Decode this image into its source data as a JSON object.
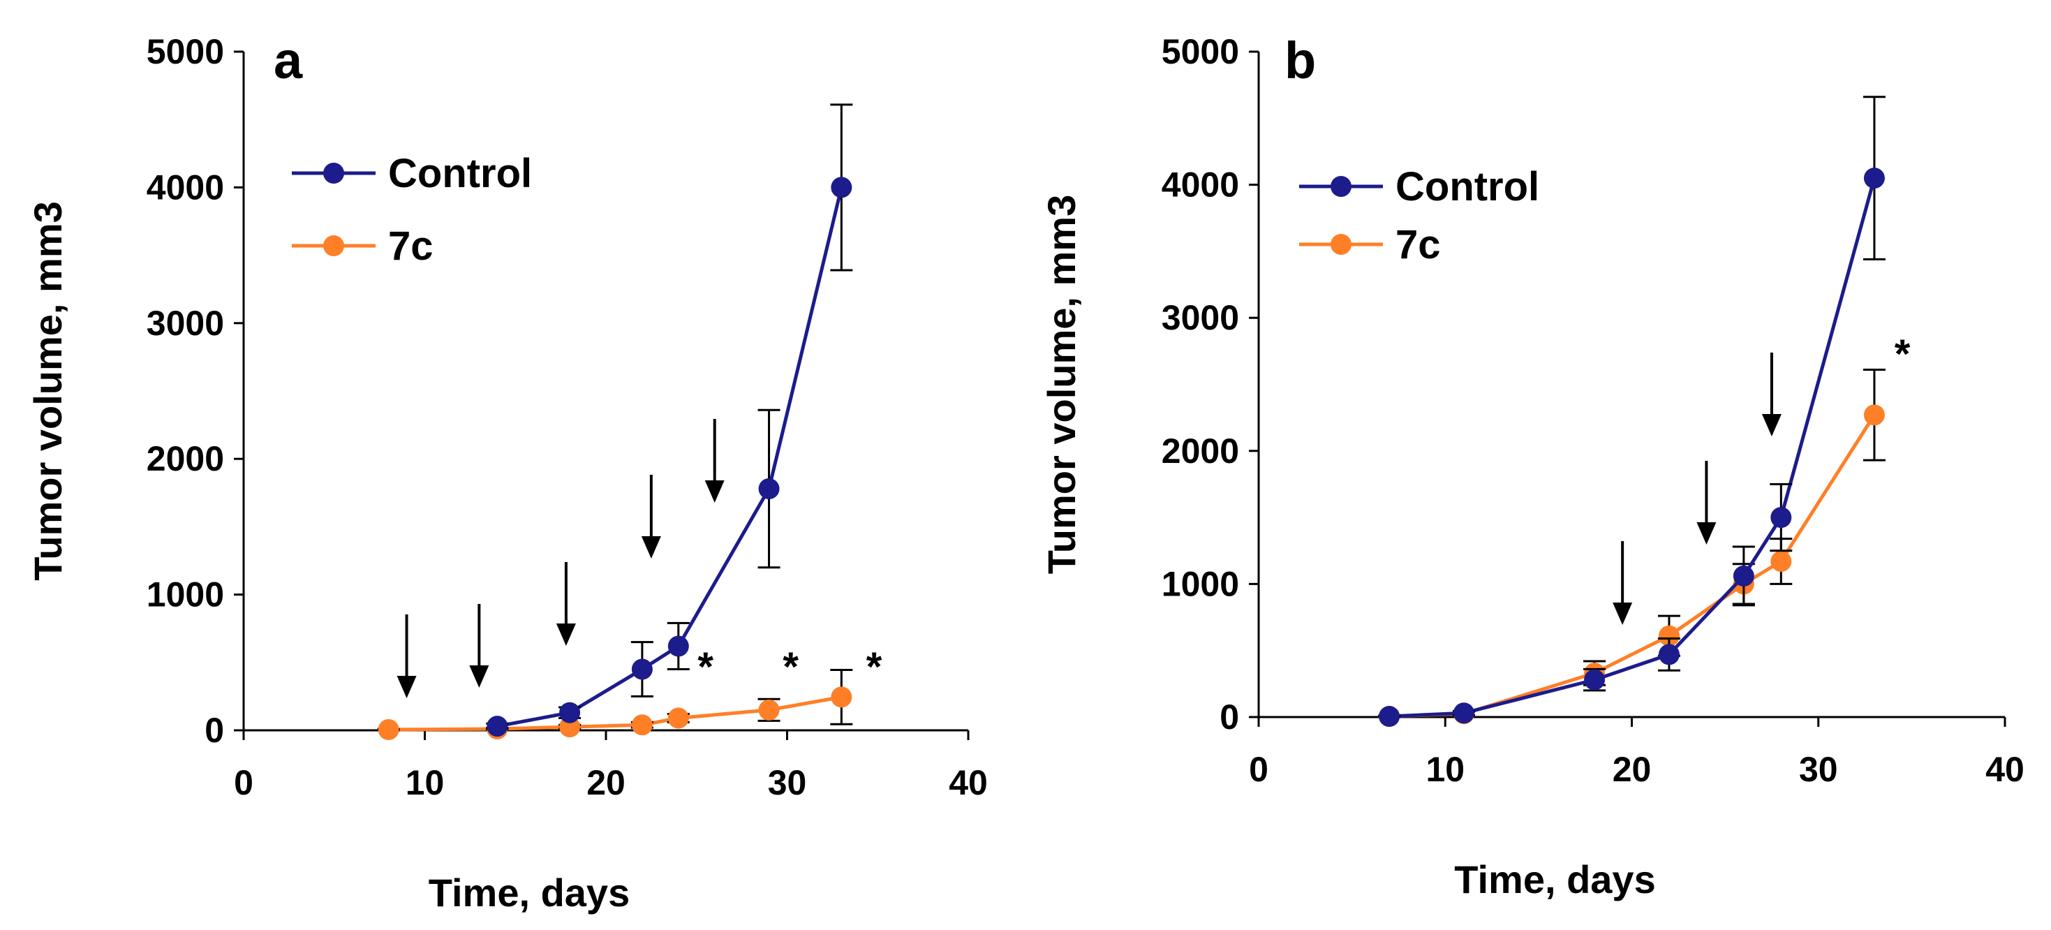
{
  "chart_data": [
    {
      "type": "line",
      "panel_label": "a",
      "xlabel": "Time, days",
      "ylabel": "Tumor volume, mm3",
      "xlim": [
        0,
        40
      ],
      "ylim": [
        0,
        5000
      ],
      "xticks": [
        "0",
        "10",
        "20",
        "30",
        "40"
      ],
      "yticks": [
        "0",
        "1000",
        "2000",
        "3000",
        "4000",
        "5000"
      ],
      "legend_position": "top-left",
      "series": [
        {
          "name": "Control",
          "color": "#1c1c8c",
          "x": [
            14,
            18,
            22,
            24,
            29,
            33
          ],
          "y": [
            30,
            130,
            450,
            620,
            1780,
            4000
          ],
          "err": [
            20,
            40,
            200,
            170,
            580,
            610
          ]
        },
        {
          "name": "7c",
          "color": "#ff7f27",
          "x": [
            8,
            14,
            18,
            22,
            24,
            29,
            33
          ],
          "y": [
            5,
            10,
            25,
            40,
            90,
            150,
            245
          ],
          "err": [
            5,
            8,
            15,
            20,
            30,
            80,
            200
          ]
        }
      ],
      "arrows_x": [
        9,
        13,
        17.8,
        22.5,
        26
      ],
      "significance": [
        {
          "label": "*",
          "x": 25.5,
          "y": 520
        },
        {
          "label": "*",
          "x": 30.2,
          "y": 520
        },
        {
          "label": "*",
          "x": 34.8,
          "y": 520
        }
      ]
    },
    {
      "type": "line",
      "panel_label": "b",
      "xlabel": "Time, days",
      "ylabel": "Tumor volume, mm3",
      "xlim": [
        0,
        40
      ],
      "ylim": [
        0,
        5000
      ],
      "xticks": [
        "0",
        "10",
        "20",
        "30",
        "40"
      ],
      "yticks": [
        "0",
        "1000",
        "2000",
        "3000",
        "4000",
        "5000"
      ],
      "legend_position": "top-left",
      "series": [
        {
          "name": "Control",
          "color": "#1c1c8c",
          "x": [
            7,
            11,
            18,
            22,
            26,
            28,
            33
          ],
          "y": [
            5,
            30,
            280,
            470,
            1060,
            1500,
            4050
          ],
          "err": [
            5,
            15,
            80,
            120,
            220,
            250,
            610
          ]
        },
        {
          "name": "7c",
          "color": "#ff7f27",
          "x": [
            7,
            11,
            18,
            22,
            26,
            28,
            33
          ],
          "y": [
            5,
            25,
            330,
            610,
            1000,
            1170,
            2270
          ],
          "err": [
            5,
            15,
            90,
            150,
            150,
            170,
            340
          ]
        }
      ],
      "arrows_x": [
        19.5,
        24,
        27.5
      ],
      "significance": [
        {
          "label": "*",
          "x": 34.5,
          "y": 2780
        }
      ]
    }
  ]
}
